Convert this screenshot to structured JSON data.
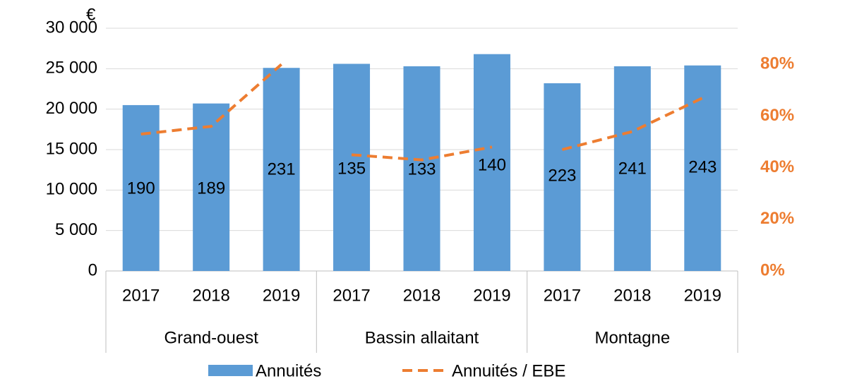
{
  "chart_data": {
    "type": "bar",
    "unit": "€",
    "categories": [
      "2017",
      "2018",
      "2019",
      "2017",
      "2018",
      "2019",
      "2017",
      "2018",
      "2019"
    ],
    "groups": [
      {
        "name": "Grand-ouest",
        "count": 3
      },
      {
        "name": "Bassin allaitant",
        "count": 3
      },
      {
        "name": "Montagne",
        "count": 3
      }
    ],
    "series": [
      {
        "name": "Annuités",
        "type": "bar",
        "color": "#5b9bd5",
        "values": [
          20500,
          20700,
          25100,
          25600,
          25300,
          26800,
          23200,
          25300,
          25400
        ]
      },
      {
        "name": "Annuités / EBE",
        "type": "line",
        "axis": "y2",
        "dashed": true,
        "color": "#ed7d31",
        "values": [
          53,
          56,
          80,
          45,
          43,
          48,
          47,
          54,
          67
        ]
      }
    ],
    "annotations": [
      "190",
      "189",
      "231",
      "135",
      "133",
      "140",
      "223",
      "241",
      "243"
    ],
    "ylim": [
      0,
      30000
    ],
    "yticks": [
      0,
      {
        "value": 5000,
        "label": "5 000"
      },
      {
        "value": 10000,
        "label": "10 000"
      },
      {
        "value": 15000,
        "label": "15 000"
      },
      {
        "value": 20000,
        "label": "20 000"
      },
      {
        "value": 25000,
        "label": "25 000"
      },
      {
        "value": 30000,
        "label": "30 000"
      }
    ],
    "y2lim": [
      0,
      94
    ],
    "y2ticks": [
      {
        "value": 0,
        "label": "0%"
      },
      {
        "value": 20,
        "label": "20%"
      },
      {
        "value": 40,
        "label": "40%"
      },
      {
        "value": 60,
        "label": "60%"
      },
      {
        "value": 80,
        "label": "80%"
      }
    ],
    "grid": true
  }
}
